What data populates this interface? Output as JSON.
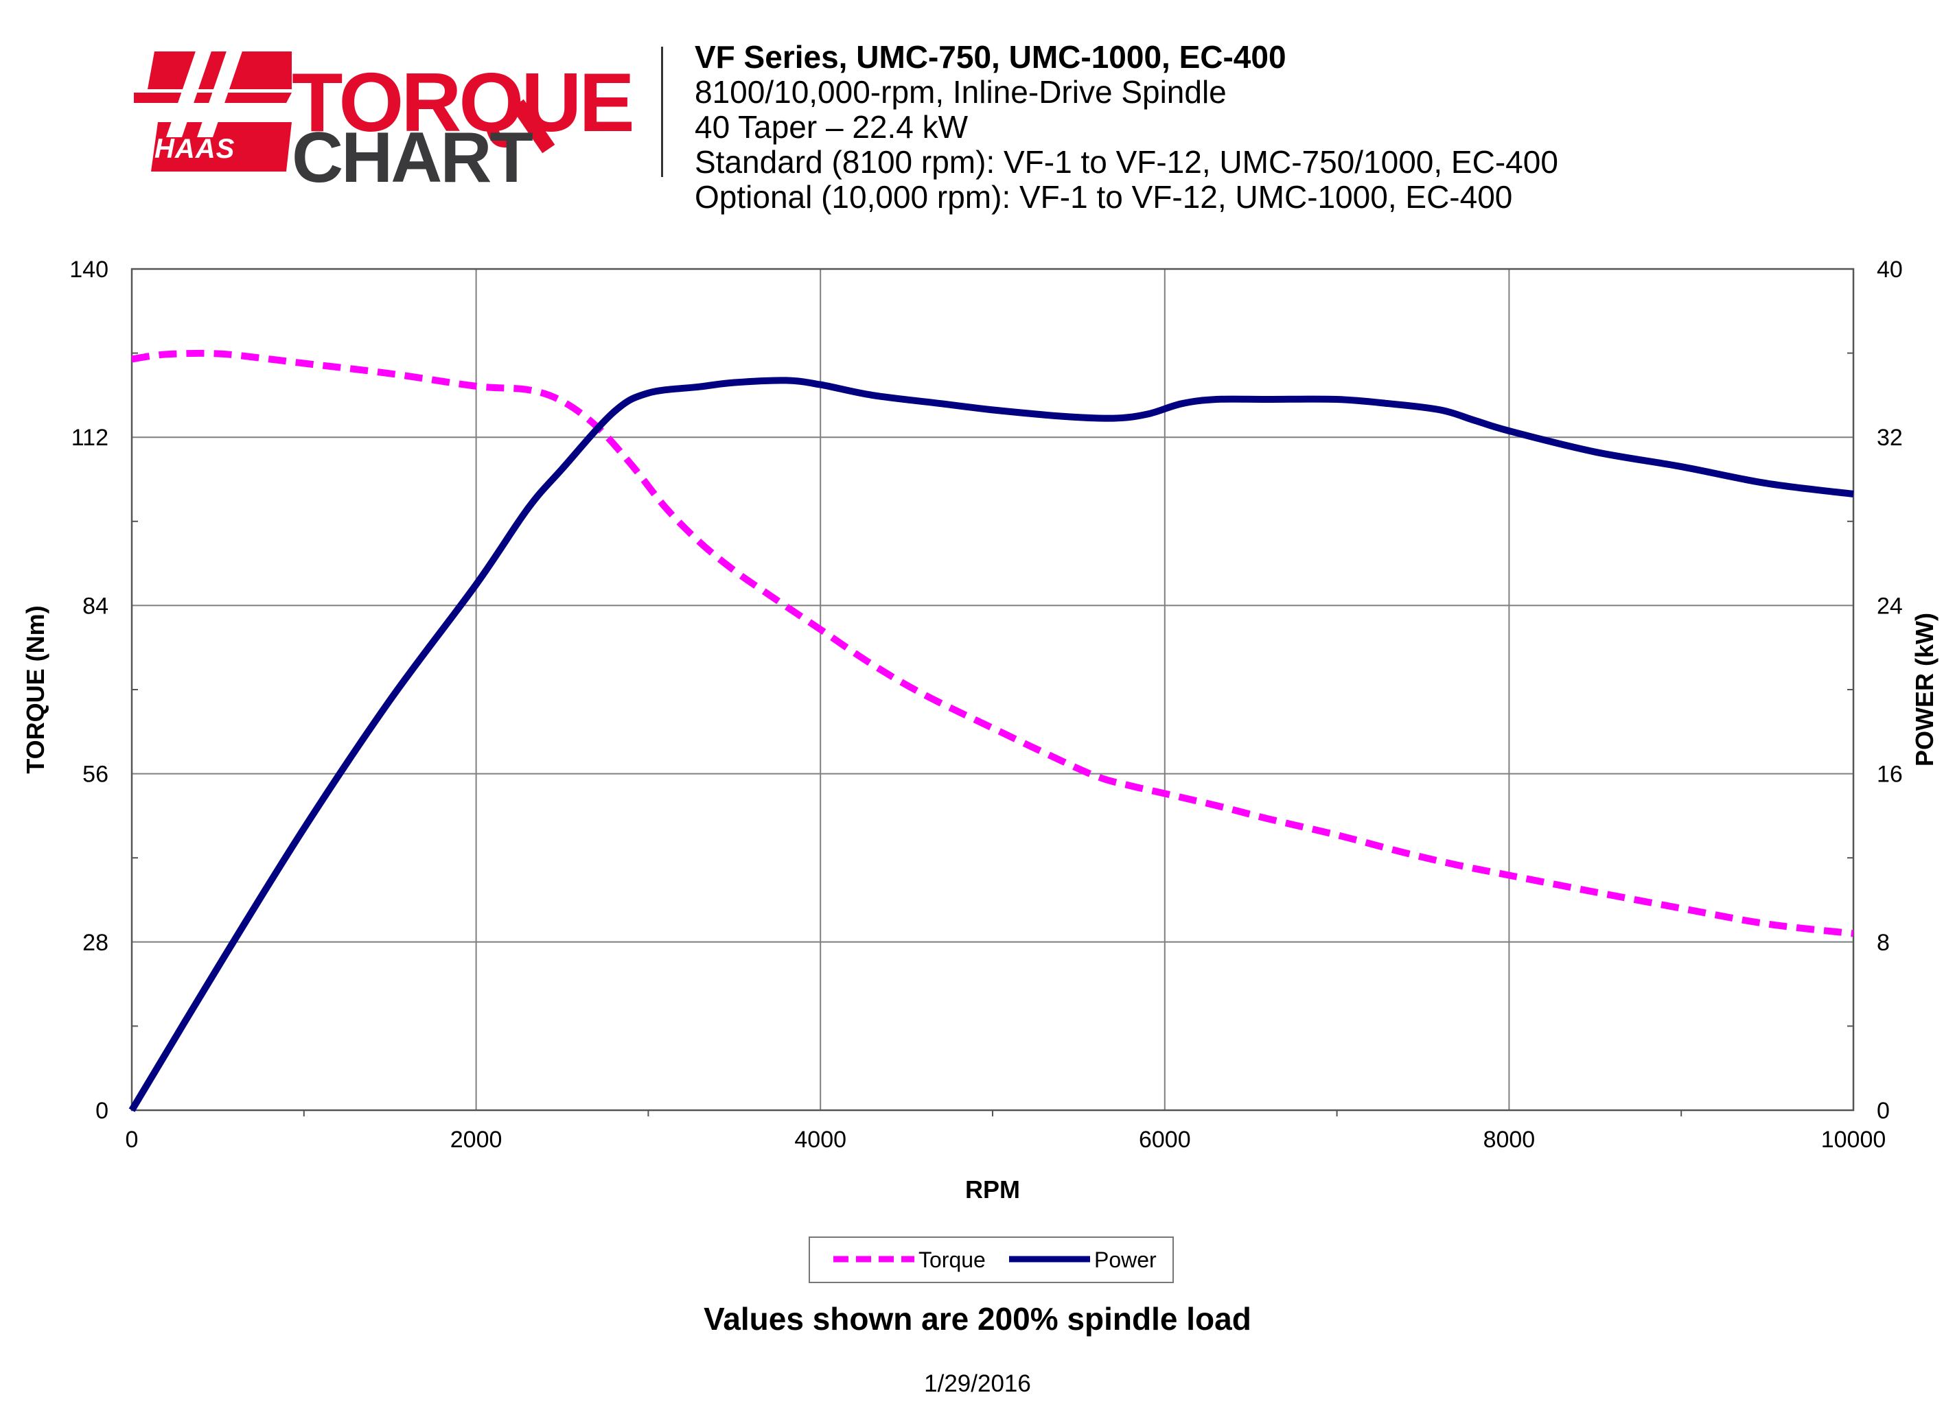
{
  "logo": {
    "word_top": "TORQUE",
    "word_bottom": "CHART",
    "brand": "HAAS"
  },
  "header": {
    "title": "VF Series, UMC-750, UMC-1000, EC-400",
    "line1": "8100/10,000-rpm, Inline-Drive Spindle",
    "line2": "40 Taper – 22.4 kW",
    "line3": "Standard (8100 rpm): VF-1 to VF-12, UMC-750/1000, EC-400",
    "line4": "Optional (10,000 rpm): VF-1 to VF-12, UMC-1000, EC-400"
  },
  "footer": {
    "note": "Values shown are 200% spindle load",
    "date": "1/29/2016"
  },
  "colors": {
    "torque": "#ff00ff",
    "power": "#000080",
    "grid": "#7f7f7f",
    "logo_red": "#e30b2b",
    "logo_gray": "#3a3a3c"
  },
  "chart_data": {
    "type": "line",
    "title": "",
    "xlabel": "RPM",
    "ylabel": "TORQUE (Nm)",
    "y2label": "POWER (kW)",
    "xlim": [
      0,
      10000
    ],
    "ylim": [
      0,
      140
    ],
    "y2lim": [
      0,
      40
    ],
    "x_ticks": [
      0,
      2000,
      4000,
      6000,
      8000,
      10000
    ],
    "y_ticks": [
      0,
      28,
      56,
      84,
      112,
      140
    ],
    "y2_ticks": [
      0,
      8,
      16,
      24,
      32,
      40
    ],
    "grid": true,
    "legend_position": "bottom-center",
    "series": [
      {
        "name": "Torque",
        "axis": "left",
        "style": "dashed",
        "color": "#ff00ff",
        "x": [
          0,
          200,
          500,
          800,
          1000,
          1500,
          2000,
          2300,
          2500,
          2700,
          2900,
          3100,
          3300,
          3500,
          3700,
          4000,
          4300,
          4600,
          5000,
          5300,
          5600,
          5800,
          6000,
          6300,
          6600,
          7000,
          7400,
          7700,
          8000,
          8500,
          9000,
          9500,
          10000
        ],
        "values": [
          125,
          125.8,
          125.9,
          125.0,
          124.3,
          122.6,
          120.5,
          119.9,
          118.0,
          113.8,
          107.5,
          100.3,
          94.5,
          89.8,
          85.8,
          80.0,
          74.2,
          69.2,
          63.6,
          59.5,
          55.6,
          54.0,
          52.7,
          50.7,
          48.5,
          45.8,
          42.8,
          40.8,
          39.1,
          36.3,
          33.6,
          31.0,
          29.4
        ]
      },
      {
        "name": "Power",
        "axis": "right",
        "style": "solid",
        "color": "#000080",
        "x": [
          0,
          500,
          1000,
          1500,
          2000,
          2300,
          2500,
          2800,
          3000,
          3300,
          3500,
          3800,
          4000,
          4300,
          4700,
          5000,
          5400,
          5700,
          5900,
          6100,
          6300,
          6600,
          7000,
          7300,
          7600,
          7800,
          8000,
          8500,
          9000,
          9500,
          10000
        ],
        "values": [
          0,
          6.8,
          13.4,
          19.5,
          25.0,
          28.6,
          30.5,
          33.2,
          34.1,
          34.4,
          34.6,
          34.7,
          34.5,
          34.0,
          33.6,
          33.3,
          33.0,
          32.9,
          33.1,
          33.6,
          33.8,
          33.8,
          33.8,
          33.6,
          33.3,
          32.8,
          32.3,
          31.3,
          30.6,
          29.8,
          29.3
        ]
      }
    ]
  }
}
